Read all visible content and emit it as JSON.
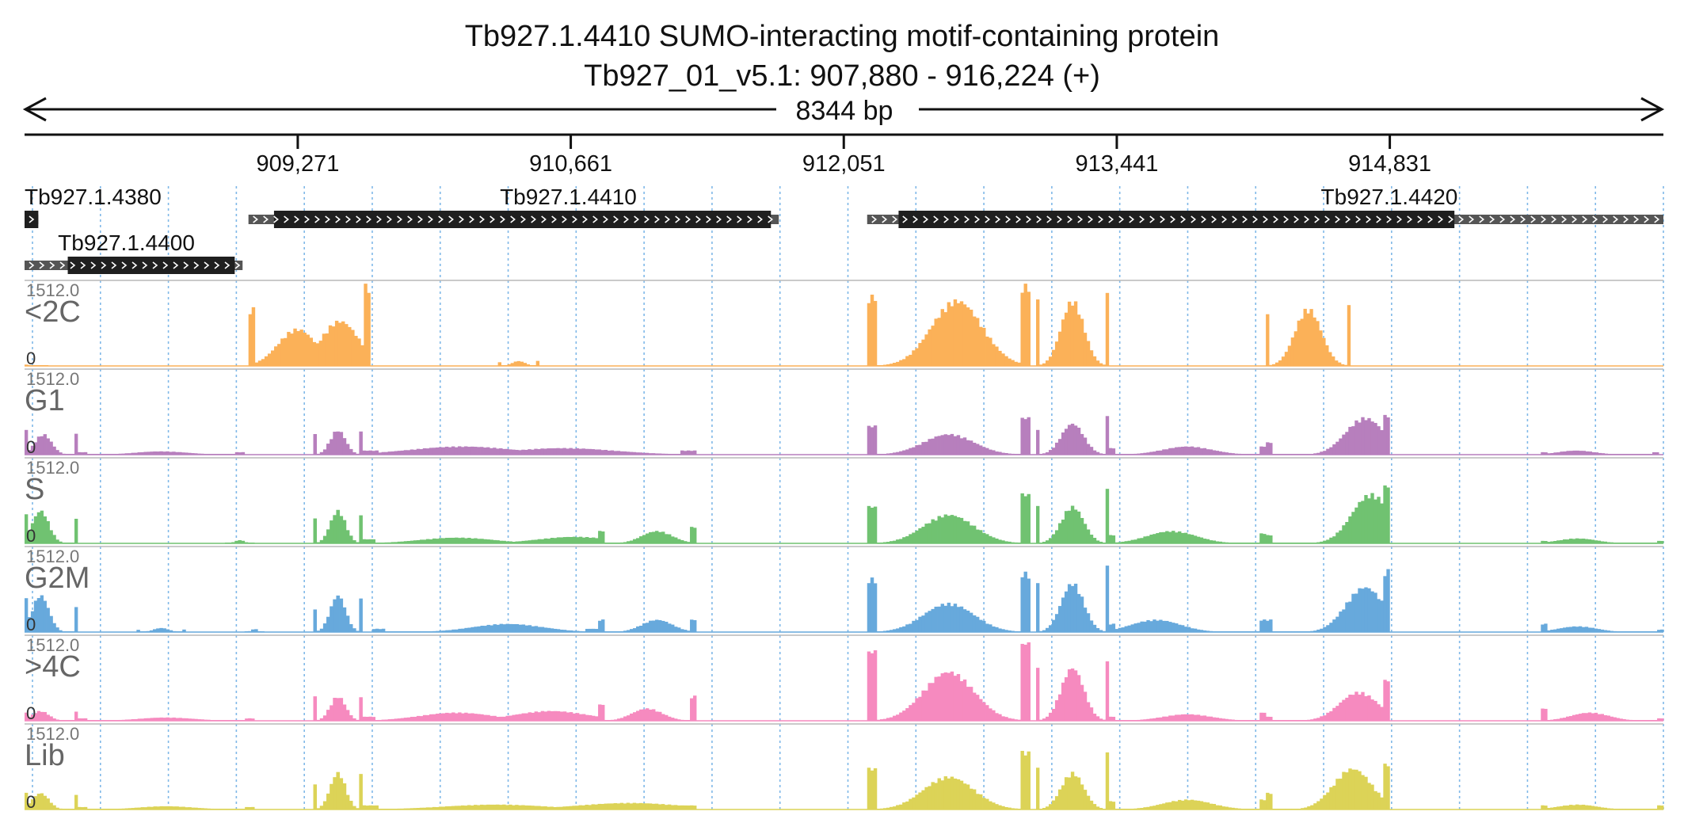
{
  "header": {
    "title": "Tb927.1.4410  SUMO-interacting motif-containing protein",
    "subtitle": "Tb927_01_v5.1: 907,880 - 916,224 (+)",
    "span_label": "8344 bp"
  },
  "colors": {
    "<2C": "#fbb158",
    "G1": "#b77fbd",
    "S": "#70c271",
    "G2M": "#67a9dc",
    ">4C": "#f68abf",
    "Lib": "#dcd357",
    "gene_fill": "#1f1f1f",
    "gene_utr": "#555555",
    "grid": "#7fb8e8"
  },
  "chart_data": {
    "type": "area",
    "title": "Tb927.1.4410  SUMO-interacting motif-containing protein",
    "region": {
      "chromosome": "Tb927_01_v5.1",
      "start": 907880,
      "end": 916224,
      "strand": "+"
    },
    "x_ticks": [
      "909,271",
      "910,661",
      "912,051",
      "913,441",
      "914,831"
    ],
    "x_tick_values": [
      909271,
      910661,
      912051,
      913441,
      914831
    ],
    "genes": [
      {
        "name": "Tb927.1.4380",
        "start": 907880,
        "end": 907950,
        "cds_start": 907880,
        "cds_end": 907950,
        "row": 0,
        "label_pos": 907880
      },
      {
        "name": "Tb927.1.4400",
        "start": 907880,
        "end": 908990,
        "cds_start": 908100,
        "cds_end": 908950,
        "row": 1,
        "label_pos": 908050
      },
      {
        "name": "Tb927.1.4410",
        "start": 909020,
        "end": 911720,
        "cds_start": 909150,
        "cds_end": 911680,
        "row": 0,
        "label_pos": 910300
      },
      {
        "name": "Tb927.1.4420",
        "start": 912170,
        "end": 916224,
        "cds_start": 912330,
        "cds_end": 915160,
        "row": 0,
        "label_pos": 914480
      }
    ],
    "tracks": [
      {
        "name": "<2C",
        "max_label": "1512.0",
        "min_label": "0",
        "ymax": 1512,
        "segments": [
          {
            "start": 907880,
            "end": 908000,
            "peaks": [
              [
                0.0,
                0.02
              ]
            ],
            "ends": [
              0.02,
              0.02
            ]
          },
          {
            "start": 909020,
            "end": 909640,
            "peaks": [
              [
                0.4,
                0.45
              ],
              [
                0.75,
                0.55
              ]
            ],
            "ends": [
              0.7,
              0.98
            ]
          },
          {
            "start": 910290,
            "end": 910500,
            "peaks": [
              [
                0.5,
                0.06
              ]
            ],
            "ends": [
              0.05,
              0.06
            ]
          },
          {
            "start": 912170,
            "end": 913000,
            "peaks": [
              [
                0.55,
                0.8
              ]
            ],
            "ends": [
              0.85,
              0.98
            ]
          },
          {
            "start": 913030,
            "end": 913400,
            "peaks": [
              [
                0.5,
                0.8
              ]
            ],
            "ends": [
              0.9,
              0.95
            ]
          },
          {
            "start": 914200,
            "end": 914630,
            "peaks": [
              [
                0.5,
                0.7
              ]
            ],
            "ends": [
              0.7,
              0.8
            ]
          }
        ]
      },
      {
        "name": "G1",
        "max_label": "1512.0",
        "min_label": "0",
        "ymax": 1512,
        "segments": [
          {
            "start": 907880,
            "end": 908150,
            "peaks": [
              [
                0.35,
                0.25
              ]
            ],
            "ends": [
              0.3,
              0.28
            ]
          },
          {
            "start": 908150,
            "end": 909000,
            "peaks": [
              [
                0.5,
                0.04
              ]
            ],
            "ends": [
              0.03,
              0.03
            ]
          },
          {
            "start": 909350,
            "end": 909600,
            "peaks": [
              [
                0.5,
                0.3
              ]
            ],
            "ends": [
              0.25,
              0.3
            ]
          },
          {
            "start": 909600,
            "end": 911300,
            "peaks": [
              [
                0.3,
                0.1
              ],
              [
                0.6,
                0.08
              ]
            ],
            "ends": [
              0.05,
              0.05
            ]
          },
          {
            "start": 912170,
            "end": 913000,
            "peaks": [
              [
                0.5,
                0.25
              ]
            ],
            "ends": [
              0.35,
              0.45
            ]
          },
          {
            "start": 913030,
            "end": 913400,
            "peaks": [
              [
                0.5,
                0.38
              ]
            ],
            "ends": [
              0.3,
              0.48
            ]
          },
          {
            "start": 913400,
            "end": 914200,
            "peaks": [
              [
                0.5,
                0.1
              ]
            ],
            "ends": [
              0.08,
              0.1
            ]
          },
          {
            "start": 914200,
            "end": 914830,
            "peaks": [
              [
                0.8,
                0.45
              ]
            ],
            "ends": [
              0.15,
              0.48
            ]
          },
          {
            "start": 915600,
            "end": 916200,
            "peaks": [
              [
                0.3,
                0.05
              ]
            ],
            "ends": [
              0.03,
              0.03
            ]
          }
        ]
      },
      {
        "name": "S",
        "max_label": "1512.0",
        "min_label": "0",
        "ymax": 1512,
        "segments": [
          {
            "start": 907880,
            "end": 908150,
            "peaks": [
              [
                0.3,
                0.4
              ]
            ],
            "ends": [
              0.35,
              0.3
            ]
          },
          {
            "start": 908900,
            "end": 909050,
            "peaks": [
              [
                0.5,
                0.04
              ]
            ],
            "ends": [
              0.03,
              0.03
            ]
          },
          {
            "start": 909350,
            "end": 909600,
            "peaks": [
              [
                0.5,
                0.4
              ]
            ],
            "ends": [
              0.3,
              0.35
            ]
          },
          {
            "start": 909600,
            "end": 910800,
            "peaks": [
              [
                0.4,
                0.07
              ],
              [
                0.9,
                0.08
              ]
            ],
            "ends": [
              0.05,
              0.05
            ]
          },
          {
            "start": 910800,
            "end": 911300,
            "peaks": [
              [
                0.6,
                0.15
              ]
            ],
            "ends": [
              0.15,
              0.2
            ]
          },
          {
            "start": 912170,
            "end": 913000,
            "peaks": [
              [
                0.5,
                0.35
              ]
            ],
            "ends": [
              0.45,
              0.6
            ]
          },
          {
            "start": 913030,
            "end": 913400,
            "peaks": [
              [
                0.5,
                0.45
              ]
            ],
            "ends": [
              0.45,
              0.65
            ]
          },
          {
            "start": 913400,
            "end": 914200,
            "peaks": [
              [
                0.4,
                0.15
              ]
            ],
            "ends": [
              0.1,
              0.12
            ]
          },
          {
            "start": 914200,
            "end": 914830,
            "peaks": [
              [
                0.85,
                0.6
              ]
            ],
            "ends": [
              0.1,
              0.7
            ]
          },
          {
            "start": 915600,
            "end": 916224,
            "peaks": [
              [
                0.3,
                0.06
              ]
            ],
            "ends": [
              0.03,
              0.03
            ]
          }
        ]
      },
      {
        "name": "G2M",
        "max_label": "1512.0",
        "min_label": "0",
        "ymax": 1512,
        "segments": [
          {
            "start": 907880,
            "end": 908150,
            "peaks": [
              [
                0.3,
                0.45
              ]
            ],
            "ends": [
              0.45,
              0.3
            ]
          },
          {
            "start": 908450,
            "end": 908700,
            "peaks": [
              [
                0.5,
                0.05
              ]
            ],
            "ends": [
              0.03,
              0.03
            ]
          },
          {
            "start": 909000,
            "end": 909100,
            "peaks": [
              [
                0.5,
                0.04
              ]
            ],
            "ends": [
              0.03,
              0.03
            ]
          },
          {
            "start": 909350,
            "end": 909600,
            "peaks": [
              [
                0.5,
                0.45
              ]
            ],
            "ends": [
              0.3,
              0.4
            ]
          },
          {
            "start": 909650,
            "end": 910800,
            "peaks": [
              [
                0.6,
                0.1
              ]
            ],
            "ends": [
              0.04,
              0.04
            ]
          },
          {
            "start": 910800,
            "end": 911300,
            "peaks": [
              [
                0.6,
                0.15
              ]
            ],
            "ends": [
              0.15,
              0.15
            ]
          },
          {
            "start": 912170,
            "end": 913000,
            "peaks": [
              [
                0.5,
                0.35
              ]
            ],
            "ends": [
              0.65,
              0.72
            ]
          },
          {
            "start": 913030,
            "end": 913400,
            "peaks": [
              [
                0.5,
                0.6
              ]
            ],
            "ends": [
              0.65,
              0.85
            ]
          },
          {
            "start": 913400,
            "end": 914200,
            "peaks": [
              [
                0.3,
                0.15
              ]
            ],
            "ends": [
              0.1,
              0.15
            ]
          },
          {
            "start": 914200,
            "end": 914830,
            "peaks": [
              [
                0.8,
                0.55
              ]
            ],
            "ends": [
              0.15,
              0.75
            ]
          },
          {
            "start": 915600,
            "end": 916224,
            "peaks": [
              [
                0.3,
                0.07
              ]
            ],
            "ends": [
              0.1,
              0.03
            ]
          }
        ]
      },
      {
        "name": ">4C",
        "max_label": "1512.0",
        "min_label": "0",
        "ymax": 1512,
        "segments": [
          {
            "start": 907880,
            "end": 908150,
            "peaks": [
              [
                0.3,
                0.12
              ]
            ],
            "ends": [
              0.1,
              0.12
            ]
          },
          {
            "start": 908150,
            "end": 909050,
            "peaks": [
              [
                0.5,
                0.04
              ]
            ],
            "ends": [
              0.03,
              0.03
            ]
          },
          {
            "start": 909350,
            "end": 909600,
            "peaks": [
              [
                0.5,
                0.3
              ]
            ],
            "ends": [
              0.3,
              0.3
            ]
          },
          {
            "start": 909600,
            "end": 910800,
            "peaks": [
              [
                0.4,
                0.1
              ],
              [
                0.8,
                0.12
              ]
            ],
            "ends": [
              0.05,
              0.05
            ]
          },
          {
            "start": 910800,
            "end": 911300,
            "peaks": [
              [
                0.5,
                0.15
              ]
            ],
            "ends": [
              0.2,
              0.3
            ]
          },
          {
            "start": 912170,
            "end": 913000,
            "peaks": [
              [
                0.5,
                0.6
              ]
            ],
            "ends": [
              0.85,
              0.95
            ]
          },
          {
            "start": 913030,
            "end": 913400,
            "peaks": [
              [
                0.5,
                0.65
              ]
            ],
            "ends": [
              0.65,
              0.75
            ]
          },
          {
            "start": 913400,
            "end": 914200,
            "peaks": [
              [
                0.5,
                0.08
              ]
            ],
            "ends": [
              0.05,
              0.1
            ]
          },
          {
            "start": 914200,
            "end": 914830,
            "peaks": [
              [
                0.75,
                0.35
              ]
            ],
            "ends": [
              0.05,
              0.5
            ]
          },
          {
            "start": 915600,
            "end": 916224,
            "peaks": [
              [
                0.4,
                0.1
              ]
            ],
            "ends": [
              0.15,
              0.03
            ]
          }
        ]
      },
      {
        "name": "Lib",
        "max_label": "1512.0",
        "min_label": "0",
        "ymax": 1512,
        "segments": [
          {
            "start": 907880,
            "end": 908150,
            "peaks": [
              [
                0.3,
                0.2
              ]
            ],
            "ends": [
              0.2,
              0.18
            ]
          },
          {
            "start": 908150,
            "end": 909050,
            "peaks": [
              [
                0.5,
                0.04
              ]
            ],
            "ends": [
              0.03,
              0.03
            ]
          },
          {
            "start": 909350,
            "end": 909600,
            "peaks": [
              [
                0.5,
                0.45
              ]
            ],
            "ends": [
              0.3,
              0.45
            ]
          },
          {
            "start": 909600,
            "end": 911300,
            "peaks": [
              [
                0.4,
                0.06
              ],
              [
                0.8,
                0.08
              ]
            ],
            "ends": [
              0.05,
              0.05
            ]
          },
          {
            "start": 912170,
            "end": 913000,
            "peaks": [
              [
                0.5,
                0.4
              ]
            ],
            "ends": [
              0.5,
              0.7
            ]
          },
          {
            "start": 913030,
            "end": 913400,
            "peaks": [
              [
                0.5,
                0.45
              ]
            ],
            "ends": [
              0.5,
              0.68
            ]
          },
          {
            "start": 913400,
            "end": 914200,
            "peaks": [
              [
                0.5,
                0.12
              ]
            ],
            "ends": [
              0.1,
              0.12
            ]
          },
          {
            "start": 914200,
            "end": 914830,
            "peaks": [
              [
                0.7,
                0.5
              ]
            ],
            "ends": [
              0.2,
              0.55
            ]
          },
          {
            "start": 915600,
            "end": 916224,
            "peaks": [
              [
                0.3,
                0.06
              ]
            ],
            "ends": [
              0.05,
              0.05
            ]
          }
        ]
      }
    ]
  }
}
